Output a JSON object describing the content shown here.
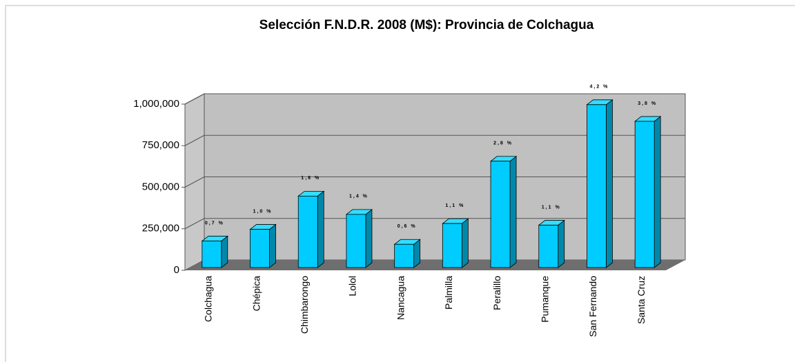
{
  "chart_data": {
    "type": "bar3d",
    "title": "Selección F.N.D.R. 2008 (M$): Provincia de Colchagua",
    "categories": [
      "Colchagua",
      "Chépica",
      "Chimbarongo",
      "Lolol",
      "Nancagua",
      "Palmilla",
      "Peralillo",
      "Pumanque",
      "San Fernando",
      "Santa Cruz"
    ],
    "values": [
      160000,
      230000,
      430000,
      320000,
      140000,
      265000,
      640000,
      255000,
      980000,
      880000
    ],
    "annotations": [
      "0,7 %",
      "1,0 %",
      "1,8 %",
      "1,4 %",
      "0,6 %",
      "1,1 %",
      "2,8 %",
      "1,1 %",
      "4,2 %",
      "3,8 %"
    ],
    "color": "#00ccff",
    "ylim": [
      0,
      1000000
    ],
    "yticks": [
      0,
      {
        "value": 250000,
        "label": "250,000"
      },
      {
        "value": 500000,
        "label": "500,000"
      },
      {
        "value": 750000,
        "label": "750,000"
      },
      {
        "value": 1000000,
        "label": "1,000,000"
      }
    ],
    "grid": true
  }
}
